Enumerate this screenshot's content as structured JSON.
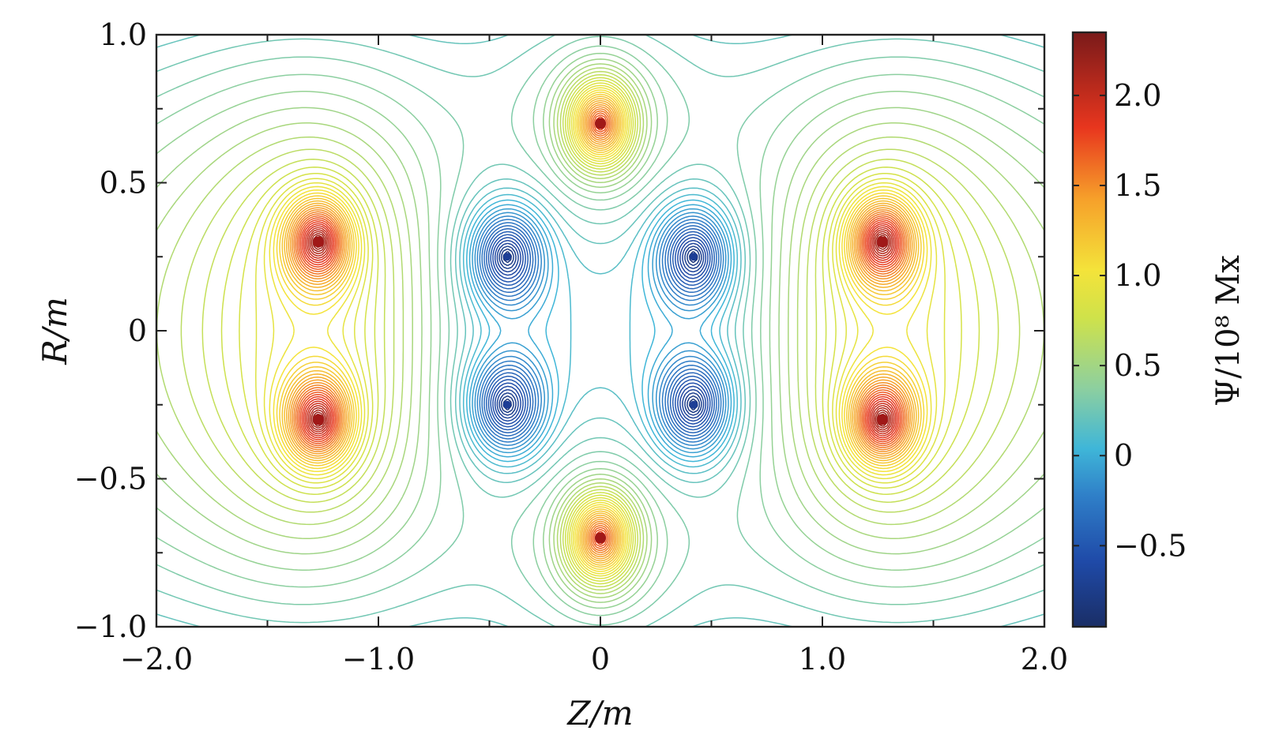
{
  "chart_data": {
    "type": "contour",
    "xlabel": "Z/m",
    "ylabel": "R/m",
    "colorbar_label": "Ψ/10⁸ Mx",
    "xlim": [
      -2.0,
      2.0
    ],
    "ylim": [
      -1.0,
      1.0
    ],
    "x_ticks": [
      -2.0,
      -1.0,
      0,
      1.0,
      2.0
    ],
    "x_tick_labels": [
      "−2.0",
      "−1.0",
      "0",
      "1.0",
      "2.0"
    ],
    "y_ticks": [
      -1.0,
      -0.5,
      0,
      0.5,
      1.0
    ],
    "y_tick_labels": [
      "−1.0",
      "−0.5",
      "0",
      "0.5",
      "1.0"
    ],
    "colorbar_range": [
      -0.95,
      2.35
    ],
    "colorbar_ticks": [
      -0.5,
      0,
      0.5,
      1.0,
      1.5,
      2.0
    ],
    "colorbar_tick_labels": [
      "−0.5",
      "0",
      "0.5",
      "1.0",
      "1.5",
      "2.0"
    ],
    "colormap": "jet",
    "contour_levels": 60,
    "grid": false,
    "maxima": [
      {
        "z": 0.0,
        "r": 0.7,
        "psi": 2.3
      },
      {
        "z": 0.0,
        "r": -0.7,
        "psi": 2.3
      },
      {
        "z": -1.27,
        "r": 0.3,
        "psi": 2.3
      },
      {
        "z": 1.27,
        "r": 0.3,
        "psi": 2.3
      },
      {
        "z": -1.27,
        "r": -0.3,
        "psi": 2.3
      },
      {
        "z": 1.27,
        "r": -0.3,
        "psi": 2.3
      }
    ],
    "minima": [
      {
        "z": -0.42,
        "r": 0.25,
        "psi": -0.95
      },
      {
        "z": 0.42,
        "r": 0.25,
        "psi": -0.95
      },
      {
        "z": -0.42,
        "r": -0.25,
        "psi": -0.95
      },
      {
        "z": 0.42,
        "r": -0.25,
        "psi": -0.95
      }
    ]
  }
}
